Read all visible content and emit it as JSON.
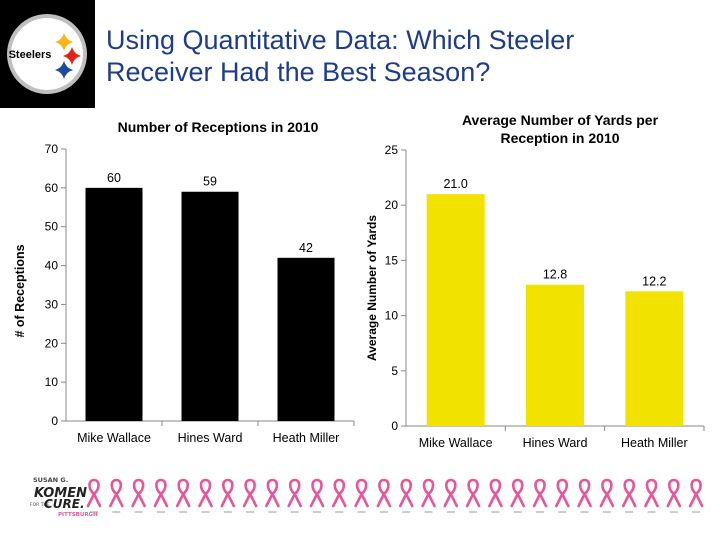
{
  "slide": {
    "title_line1": "Using Quantitative Data: Which  Steeler",
    "title_line2": "Receiver Had the Best Season?"
  },
  "logo": {
    "text": "Steelers",
    "colors": {
      "yellow": "#fcb514",
      "red": "#e2231a",
      "blue": "#1c4b9c",
      "gray": "#bfbfbf"
    }
  },
  "footer_logo": {
    "line1": "SUSAN G.",
    "line2": "KOMEN",
    "line3": "FOR THE",
    "line4": "CURE.",
    "line5": "PITTSBURGH",
    "accent": "#e8559a"
  },
  "chart_data": [
    {
      "type": "bar",
      "title": "Number of Receptions in 2010",
      "xlabel": "",
      "ylabel": "# of Receptions",
      "categories": [
        "Mike Wallace",
        "Hines Ward",
        "Heath Miller"
      ],
      "values": [
        60,
        59,
        42
      ],
      "value_labels": [
        "60",
        "59",
        "42"
      ],
      "ylim": [
        0,
        70
      ],
      "yticks": [
        "0",
        "10",
        "20",
        "30",
        "40",
        "50",
        "60",
        "70"
      ],
      "bar_color": "#000000",
      "grid": false,
      "legend": "none"
    },
    {
      "type": "bar",
      "title_line1": "Average Number of  Yards per",
      "title_line2": "Reception in 2010",
      "xlabel": "",
      "ylabel": "Average Number of Yards",
      "categories": [
        "Mike Wallace",
        "Hines Ward",
        "Heath Miller"
      ],
      "values": [
        21.0,
        12.8,
        12.2
      ],
      "value_labels": [
        "21.0",
        "12.8",
        "12.2"
      ],
      "ylim": [
        0,
        25
      ],
      "yticks": [
        "0",
        "5",
        "10",
        "15",
        "20",
        "25"
      ],
      "bar_color": "#f2e200",
      "grid": false,
      "legend": "none"
    }
  ]
}
